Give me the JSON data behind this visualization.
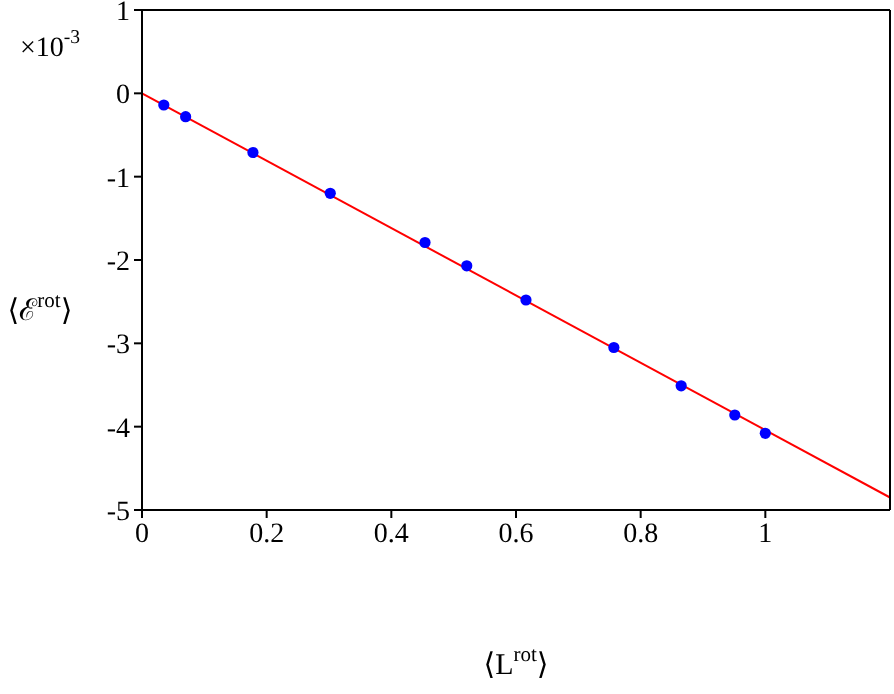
{
  "chart_data": {
    "type": "scatter",
    "xlabel": "⟨L$^{rot}$⟩",
    "ylabel": "⟨ℰ$^{rot}$⟩",
    "annotations": [
      "×10$^{-3}$"
    ],
    "series": [
      {
        "color": "#0000ff",
        "marker": "circle",
        "x": [
          0.035,
          0.07,
          0.178,
          0.302,
          0.454,
          0.521,
          0.616,
          0.757,
          0.865,
          0.951,
          1.0
        ],
        "values": [
          -0.14,
          -0.28,
          -0.71,
          -1.2,
          -1.79,
          -2.07,
          -2.48,
          -3.05,
          -3.51,
          -3.86,
          -4.08
        ]
      },
      {
        "type": "line",
        "color": "#ff0000",
        "marker": "none",
        "line_style": "solid",
        "x": [
          0,
          1.2
        ],
        "values": [
          0,
          -4.85
        ]
      }
    ],
    "xlim": [
      0,
      1.2
    ],
    "xticks": [
      0,
      0.2,
      0.4,
      0.6,
      0.8,
      1
    ],
    "ylim": [
      -5,
      1
    ],
    "yticks": [
      -5,
      -4,
      -3,
      -2,
      -1,
      0,
      1
    ]
  }
}
